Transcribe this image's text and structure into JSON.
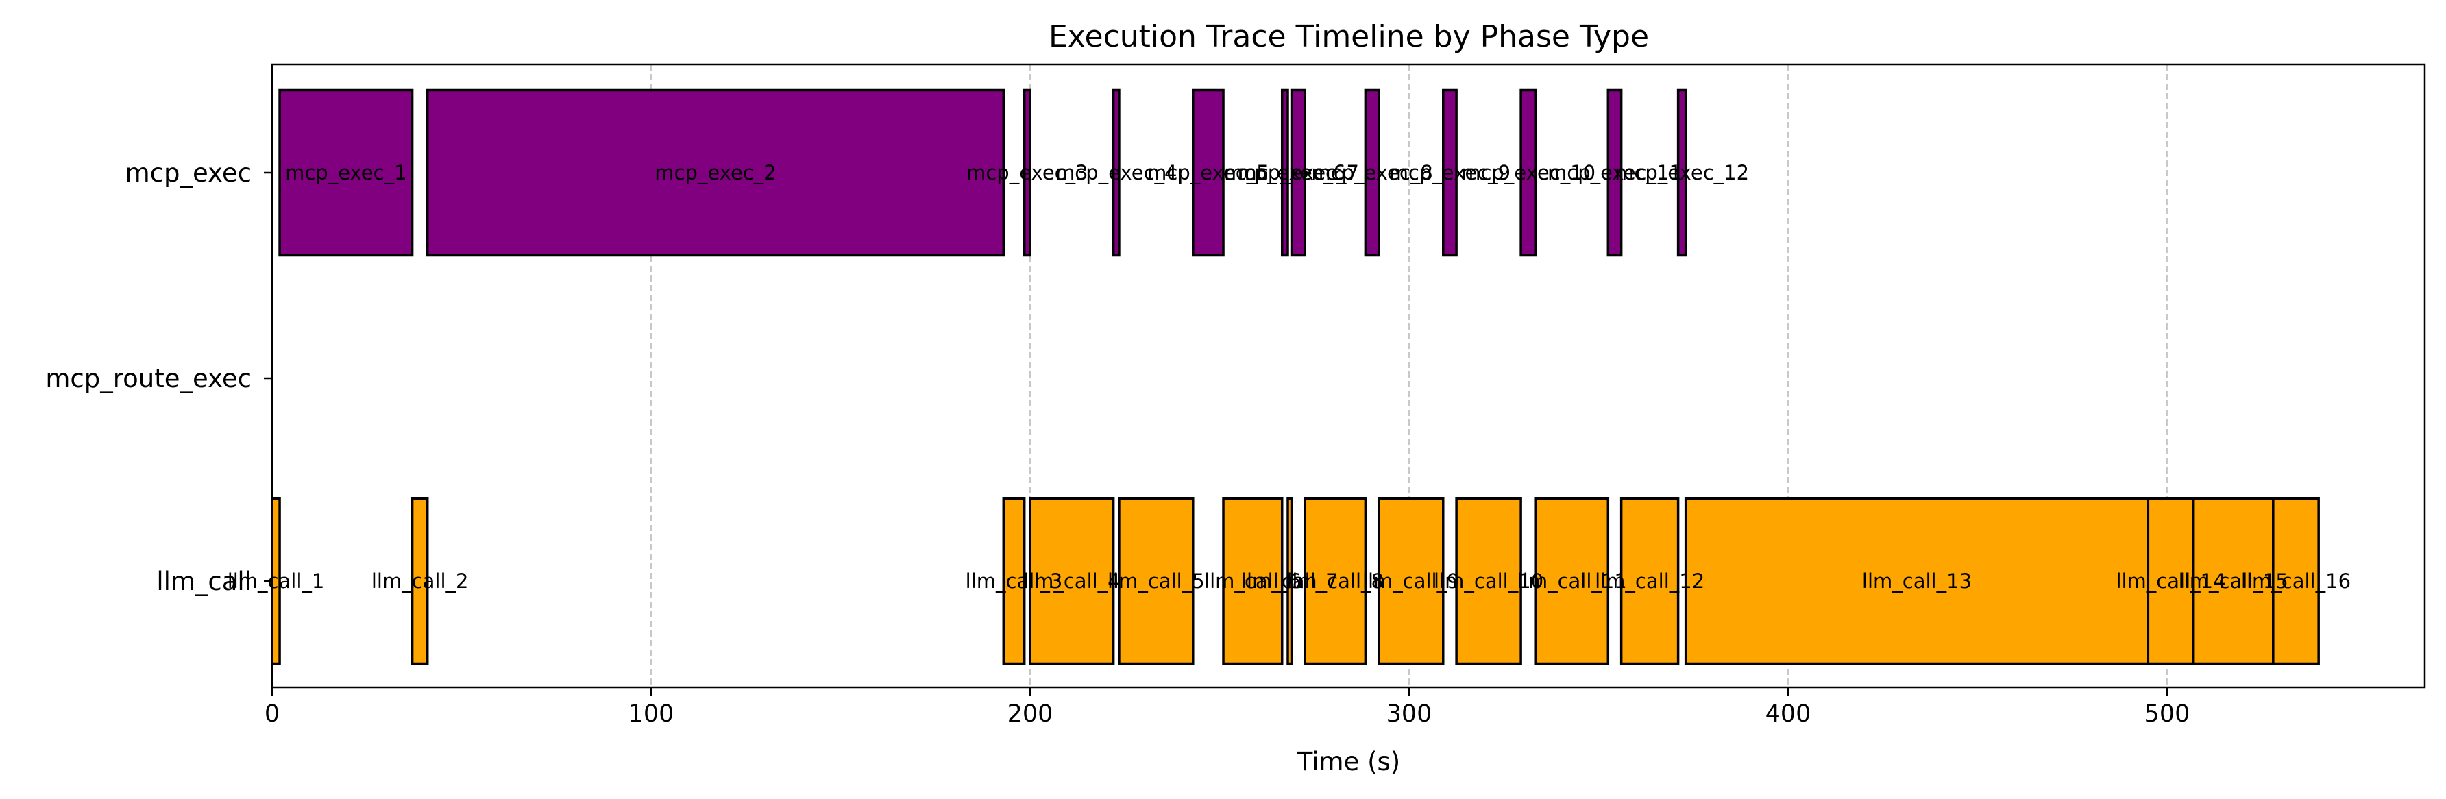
{
  "chart_data": {
    "type": "gantt",
    "title": "Execution Trace Timeline by Phase Type",
    "xlabel": "Time (s)",
    "xlim": [
      0,
      568
    ],
    "xticks": [
      0,
      100,
      200,
      300,
      400,
      500
    ],
    "grid": "vertical dashed at x ticks",
    "categories": [
      "mcp_exec",
      "mcp_route_exec",
      "llm_call"
    ],
    "colors": {
      "mcp_exec": "#800080",
      "llm_call": "#FFA500"
    },
    "series": [
      {
        "category": "mcp_exec",
        "bars": [
          {
            "label": "mcp_exec_1",
            "start": 2,
            "end": 37
          },
          {
            "label": "mcp_exec_2",
            "start": 41,
            "end": 193
          },
          {
            "label": "mcp_exec_3",
            "start": 198.5,
            "end": 200
          },
          {
            "label": "mcp_exec_4",
            "start": 222,
            "end": 223.5
          },
          {
            "label": "mcp_exec_5",
            "start": 243,
            "end": 251
          },
          {
            "label": "mcp_exec_6",
            "start": 266.5,
            "end": 268
          },
          {
            "label": "mcp_exec_7",
            "start": 269,
            "end": 272.5
          },
          {
            "label": "mcp_exec_8",
            "start": 288.5,
            "end": 292
          },
          {
            "label": "mcp_exec_9",
            "start": 309,
            "end": 312.5
          },
          {
            "label": "mcp_exec_10",
            "start": 329.5,
            "end": 333.5
          },
          {
            "label": "mcp_exec_11",
            "start": 352.5,
            "end": 356
          },
          {
            "label": "mcp_exec_12",
            "start": 371,
            "end": 373
          }
        ]
      },
      {
        "category": "llm_call",
        "bars": [
          {
            "label": "llm_call_1",
            "start": 0,
            "end": 2
          },
          {
            "label": "llm_call_2",
            "start": 37,
            "end": 41
          },
          {
            "label": "llm_call_3",
            "start": 193,
            "end": 198.5
          },
          {
            "label": "llm_call_4",
            "start": 200,
            "end": 222
          },
          {
            "label": "llm_call_5",
            "start": 223.5,
            "end": 243
          },
          {
            "label": "llm_call_6",
            "start": 251,
            "end": 266.5
          },
          {
            "label": "llm_call_7",
            "start": 268,
            "end": 269
          },
          {
            "label": "llm_call_8",
            "start": 272.5,
            "end": 288.5
          },
          {
            "label": "llm_call_9",
            "start": 292,
            "end": 309
          },
          {
            "label": "llm_call_10",
            "start": 312.5,
            "end": 329.5
          },
          {
            "label": "llm_call_11",
            "start": 333.5,
            "end": 352.5
          },
          {
            "label": "llm_call_12",
            "start": 356,
            "end": 371
          },
          {
            "label": "llm_call_13",
            "start": 373,
            "end": 495
          },
          {
            "label": "llm_call_14",
            "start": 495,
            "end": 507
          },
          {
            "label": "llm_call_15",
            "start": 507,
            "end": 528
          },
          {
            "label": "llm_call_16",
            "start": 528,
            "end": 540
          }
        ]
      }
    ]
  }
}
